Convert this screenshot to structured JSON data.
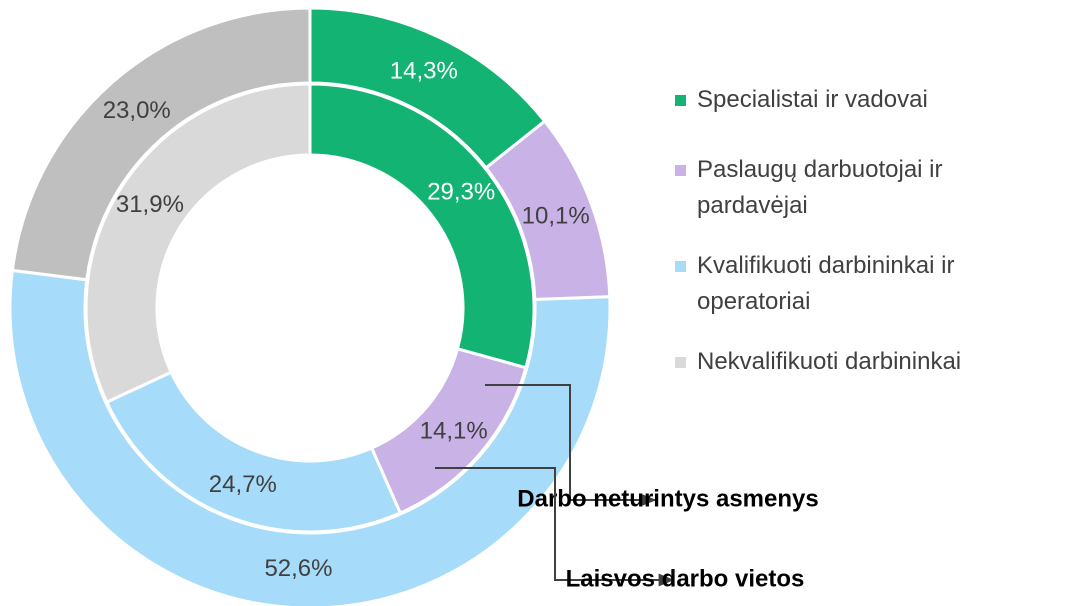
{
  "chart_data": {
    "type": "donut",
    "categories": [
      "Specialistai ir vadovai",
      "Paslaugų darbuotojai ir pardavėjai",
      "Kvalifikuoti darbininkai ir operatoriai",
      "Nekvalifikuoti darbininkai"
    ],
    "legend_colors": [
      "#13b374",
      "#c9b3e6",
      "#a6dcf9",
      "#d9d9d9"
    ],
    "series": [
      {
        "name": "Darbo neturintys asmenys",
        "ring": "inner",
        "colors": [
          "#13b374",
          "#c9b3e6",
          "#a6dcf9",
          "#d9d9d9"
        ],
        "values": [
          29.3,
          14.1,
          24.7,
          31.9
        ],
        "value_labels": [
          "29,3%",
          "14,1%",
          "24,7%",
          "31,9%"
        ]
      },
      {
        "name": "Laisvos darbo vietos",
        "ring": "outer",
        "colors": [
          "#13b374",
          "#c9b3e6",
          "#a6dcf9",
          "#bfbfbf"
        ],
        "values": [
          14.3,
          10.1,
          52.6,
          23.0
        ],
        "value_labels": [
          "14,3%",
          "10,1%",
          "52,6%",
          "23,0%"
        ]
      }
    ],
    "legend_position": "right"
  }
}
